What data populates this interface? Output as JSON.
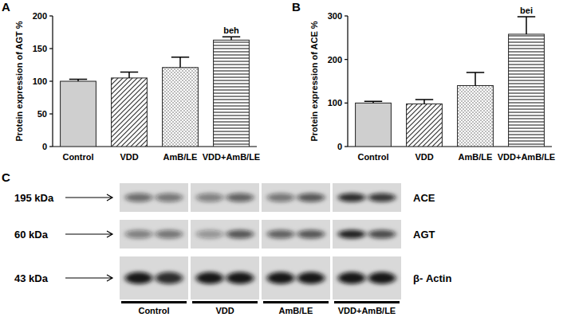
{
  "chart_data": [
    {
      "type": "bar",
      "label": "A",
      "y_label": "Protein expression of AGT %",
      "categories": [
        "Control",
        "VDD",
        "AmB/LE",
        "VDD+AmB/LE"
      ],
      "values": [
        100,
        105,
        121,
        163
      ],
      "errors": [
        3,
        9,
        16,
        5
      ],
      "ylim": [
        0,
        200
      ],
      "yticks": [
        0,
        50,
        100,
        150,
        200
      ],
      "grid": false,
      "annotations": [
        {
          "category": "VDD+AmB/LE",
          "text": "beh"
        }
      ]
    },
    {
      "type": "bar",
      "label": "B",
      "y_label": "Protein expression of ACE %",
      "categories": [
        "Control",
        "VDD",
        "AmB/LE",
        "VDD+AmB/LE"
      ],
      "values": [
        100,
        98,
        140,
        258
      ],
      "errors": [
        4,
        10,
        30,
        40
      ],
      "ylim": [
        0,
        300
      ],
      "yticks": [
        0,
        100,
        200,
        300
      ],
      "grid": false,
      "annotations": [
        {
          "category": "VDD+AmB/LE",
          "text": "bei"
        }
      ]
    }
  ],
  "blot": {
    "label": "C",
    "groups": [
      "Control",
      "VDD",
      "AmB/LE",
      "VDD+AmB/LE"
    ],
    "rows": [
      {
        "name": "ACE",
        "size": "195 kDa",
        "intensity": [
          0.55,
          0.5,
          0.45,
          0.6,
          0.5,
          0.65,
          0.85,
          0.8
        ]
      },
      {
        "name": "AGT",
        "size": "60 kDa",
        "intensity": [
          0.45,
          0.5,
          0.35,
          0.65,
          0.6,
          0.65,
          0.9,
          0.7
        ]
      },
      {
        "name": "β- Actin",
        "size": "43 kDa",
        "intensity": [
          0.95,
          0.85,
          0.95,
          0.95,
          0.95,
          0.95,
          0.95,
          0.95
        ]
      }
    ]
  }
}
